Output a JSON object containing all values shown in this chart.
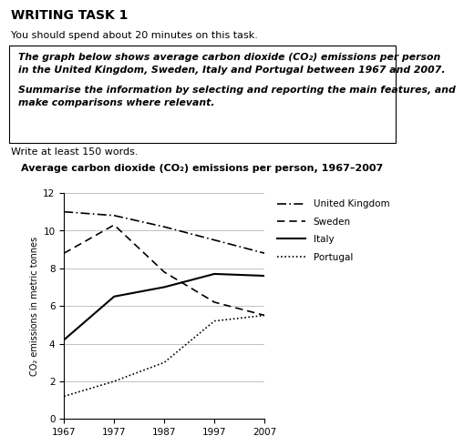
{
  "title": "Average carbon dioxide (CO₂) emissions per person, 1967–2007",
  "ylabel": "CO₂ emissions in metric tonnes",
  "years": [
    1967,
    1977,
    1987,
    1997,
    2007
  ],
  "uk": [
    11.0,
    10.8,
    10.2,
    9.5,
    8.8
  ],
  "sweden": [
    8.8,
    10.3,
    7.8,
    6.2,
    5.5
  ],
  "italy": [
    4.2,
    6.5,
    7.0,
    7.7,
    7.6
  ],
  "portugal": [
    1.2,
    2.0,
    3.0,
    5.2,
    5.5
  ],
  "ylim": [
    0,
    12
  ],
  "yticks": [
    0,
    2,
    4,
    6,
    8,
    10,
    12
  ],
  "xticks": [
    1967,
    1977,
    1987,
    1997,
    2007
  ],
  "header_title": "WRITING TASK 1",
  "header_line1": "You should spend about 20 minutes on this task.",
  "box_line1": "The graph below shows average carbon dioxide (CO₂) emissions per person",
  "box_line2": "in the United Kingdom, Sweden, Italy and Portugal between 1967 and 2007.",
  "box_line3": "Summarise the information by selecting and reporting the main features, and",
  "box_line4": "make comparisons where relevant.",
  "footer_text": "Write at least 150 words.",
  "bg_color": "#ffffff",
  "legend_labels": [
    "United Kingdom",
    "Sweden",
    "Italy",
    "Portugal"
  ]
}
